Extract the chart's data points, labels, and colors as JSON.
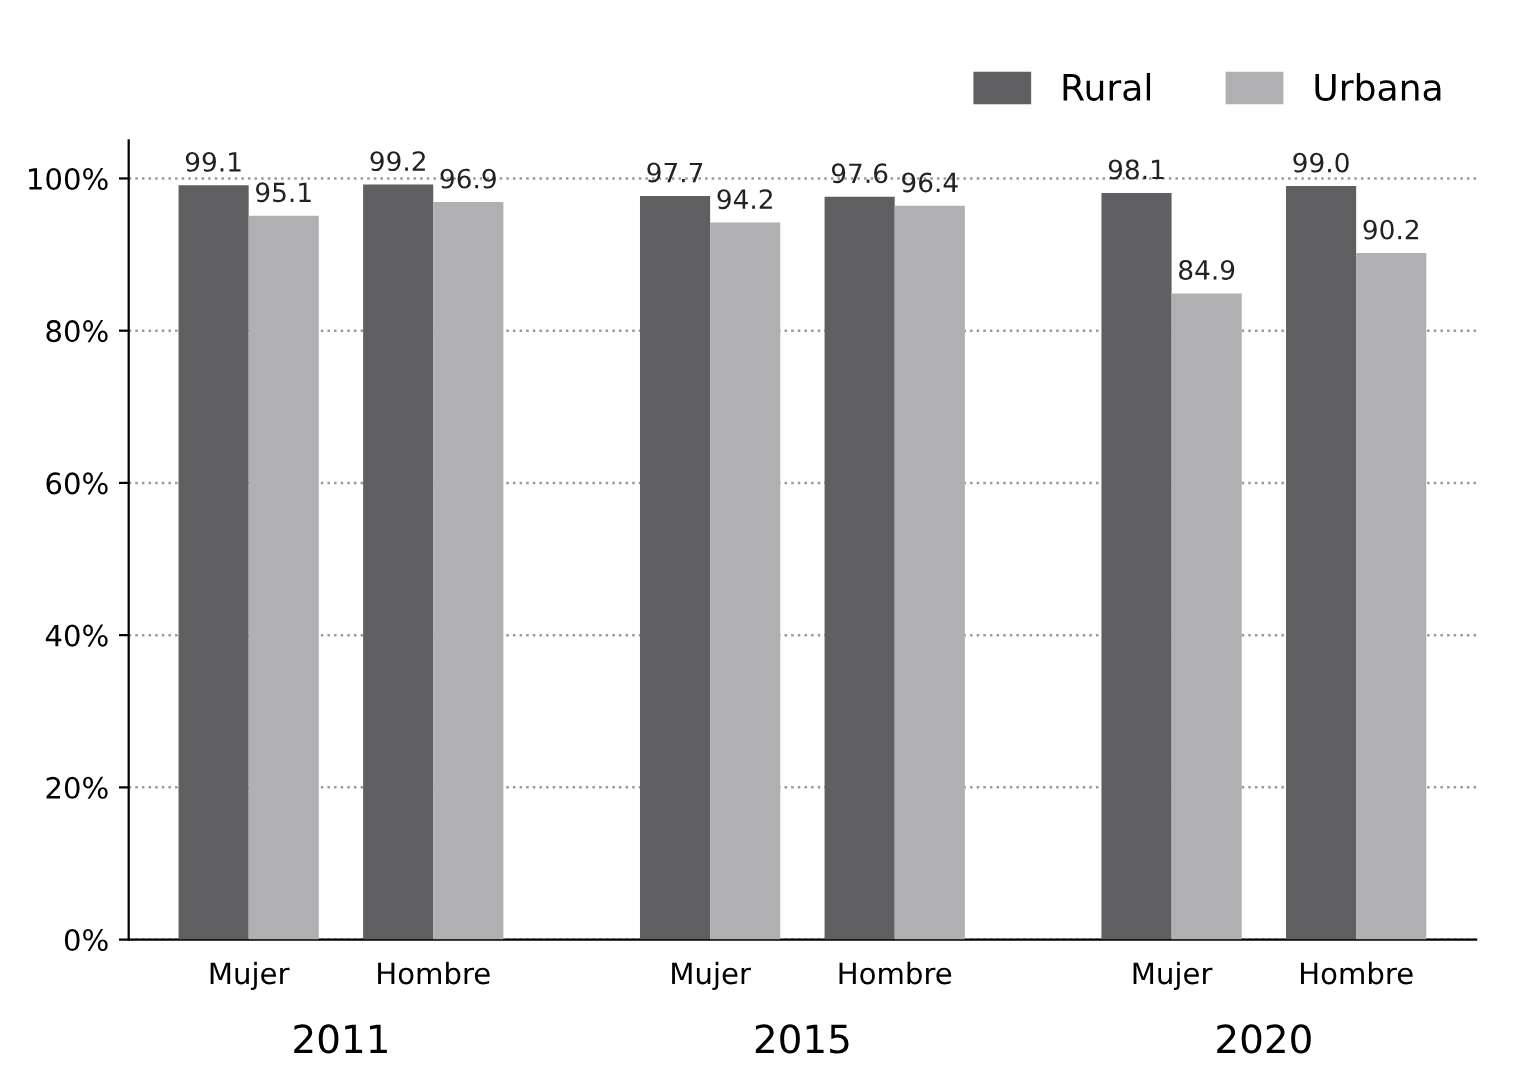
{
  "chart_data": {
    "type": "bar",
    "categories": [
      "Mujer",
      "Hombre",
      "Mujer",
      "Hombre",
      "Mujer",
      "Hombre"
    ],
    "series": [
      {
        "name": "Rural",
        "color": "#5f5f61",
        "values": [
          99.1,
          99.2,
          97.7,
          97.6,
          98.1,
          99.0
        ],
        "value_labels": [
          "99.1",
          "99.2",
          "97.7",
          "97.6",
          "98.1",
          "99.0"
        ]
      },
      {
        "name": "Urbana",
        "color": "#b0b0b2",
        "values": [
          95.1,
          96.9,
          94.2,
          96.4,
          84.9,
          90.2
        ],
        "value_labels": [
          "95.1",
          "96.9",
          "94.2",
          "96.4",
          "84.9",
          "90.2"
        ]
      }
    ],
    "annotations": [
      "2011",
      "2015",
      "2020"
    ],
    "ylim": [
      0,
      105
    ],
    "yticks": [
      {
        "value": 0,
        "label": "0%"
      },
      {
        "value": 20,
        "label": "20%"
      },
      {
        "value": 40,
        "label": "40%"
      },
      {
        "value": 60,
        "label": "60%"
      },
      {
        "value": 80,
        "label": "80%"
      },
      {
        "value": 100,
        "label": "100%"
      }
    ],
    "grid": "y",
    "legend": "top right"
  }
}
